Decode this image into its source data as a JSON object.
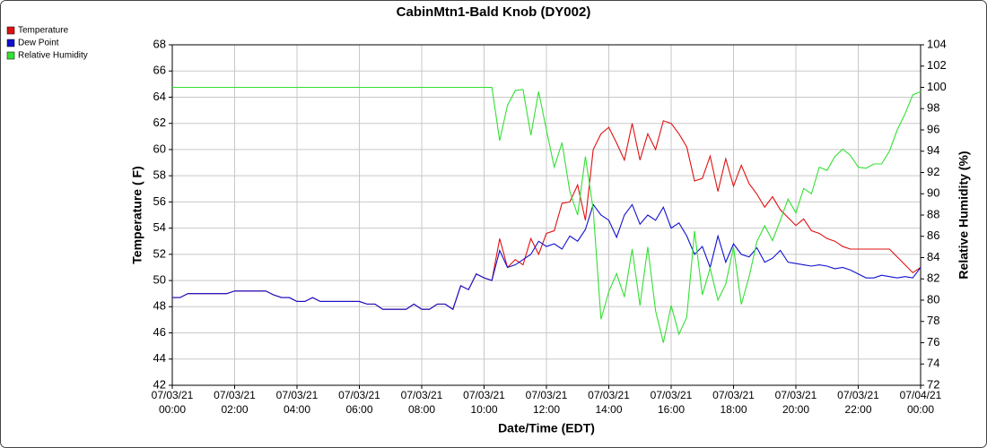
{
  "chart_data": {
    "type": "line",
    "title": "CabinMtn1-Bald Knob (DY002)",
    "x_label": "Date/Time (EDT)",
    "y_label": "Temperature ( F)",
    "y2_label": "Relative Humidity (%)",
    "xlim": [
      0,
      24
    ],
    "xticks": [
      {
        "value": 0,
        "label": "07/03/21 00:00"
      },
      {
        "value": 2,
        "label": "07/03/21 02:00"
      },
      {
        "value": 4,
        "label": "07/03/21 04:00"
      },
      {
        "value": 6,
        "label": "07/03/21 06:00"
      },
      {
        "value": 8,
        "label": "07/03/21 08:00"
      },
      {
        "value": 10,
        "label": "07/03/21 10:00"
      },
      {
        "value": 12,
        "label": "07/03/21 12:00"
      },
      {
        "value": 14,
        "label": "07/03/21 14:00"
      },
      {
        "value": 16,
        "label": "07/03/21 16:00"
      },
      {
        "value": 18,
        "label": "07/03/21 18:00"
      },
      {
        "value": 20,
        "label": "07/03/21 20:00"
      },
      {
        "value": 22,
        "label": "07/03/21 22:00"
      },
      {
        "value": 24,
        "label": "07/04/21 00:00"
      }
    ],
    "ylim": [
      42,
      68
    ],
    "yticks": [
      42,
      44,
      46,
      48,
      50,
      52,
      54,
      56,
      58,
      60,
      62,
      64,
      66,
      68
    ],
    "y2lim": [
      72,
      104
    ],
    "y2ticks": [
      72,
      74,
      76,
      78,
      80,
      82,
      84,
      86,
      88,
      90,
      92,
      94,
      96,
      98,
      100,
      102,
      104
    ],
    "grid": true,
    "legend": "top-left",
    "x": [
      0,
      0.25,
      0.5,
      0.75,
      1,
      1.25,
      1.5,
      1.75,
      2,
      2.25,
      2.5,
      2.75,
      3,
      3.25,
      3.5,
      3.75,
      4,
      4.25,
      4.5,
      4.75,
      5,
      5.25,
      5.5,
      5.75,
      6,
      6.25,
      6.5,
      6.75,
      7,
      7.25,
      7.5,
      7.75,
      8,
      8.25,
      8.5,
      8.75,
      9,
      9.25,
      9.5,
      9.75,
      10,
      10.25,
      10.5,
      10.75,
      11,
      11.25,
      11.5,
      11.75,
      12,
      12.25,
      12.5,
      12.75,
      13,
      13.25,
      13.5,
      13.75,
      14,
      14.25,
      14.5,
      14.75,
      15,
      15.25,
      15.5,
      15.75,
      16,
      16.25,
      16.5,
      16.75,
      17,
      17.25,
      17.5,
      17.75,
      18,
      18.25,
      18.5,
      18.75,
      19,
      19.25,
      19.5,
      19.75,
      20,
      20.25,
      20.5,
      20.75,
      21,
      21.25,
      21.5,
      21.75,
      22,
      22.25,
      22.5,
      22.75,
      23,
      23.25,
      23.5,
      23.75,
      24
    ],
    "series": [
      {
        "name": "Temperature",
        "color": "#e01010",
        "values": [
          48.7,
          48.7,
          49.0,
          49.0,
          49.0,
          49.0,
          49.0,
          49.0,
          49.2,
          49.2,
          49.2,
          49.2,
          49.2,
          48.9,
          48.7,
          48.7,
          48.4,
          48.4,
          48.7,
          48.4,
          48.4,
          48.4,
          48.4,
          48.4,
          48.4,
          48.2,
          48.2,
          47.8,
          47.8,
          47.8,
          47.8,
          48.2,
          47.8,
          47.8,
          48.2,
          48.2,
          47.8,
          49.6,
          49.3,
          50.5,
          50.2,
          50.0,
          53.2,
          51.0,
          51.6,
          51.2,
          53.2,
          52.0,
          53.6,
          53.8,
          55.9,
          56.0,
          57.3,
          54.6,
          60.0,
          61.2,
          61.7,
          60.5,
          59.2,
          62.0,
          59.2,
          61.2,
          60.0,
          62.2,
          62.0,
          61.2,
          60.2,
          57.6,
          57.8,
          59.5,
          56.8,
          59.3,
          57.2,
          58.8,
          57.4,
          56.6,
          55.6,
          56.4,
          55.4,
          54.8,
          54.2,
          54.7,
          53.8,
          53.6,
          53.2,
          53.0,
          52.6,
          52.4,
          52.4,
          52.4,
          52.4,
          52.4,
          52.4,
          51.8,
          51.2,
          50.6,
          51.0
        ]
      },
      {
        "name": "Dew Point",
        "color": "#1010d0",
        "values": [
          48.7,
          48.7,
          49.0,
          49.0,
          49.0,
          49.0,
          49.0,
          49.0,
          49.2,
          49.2,
          49.2,
          49.2,
          49.2,
          48.9,
          48.7,
          48.7,
          48.4,
          48.4,
          48.7,
          48.4,
          48.4,
          48.4,
          48.4,
          48.4,
          48.4,
          48.2,
          48.2,
          47.8,
          47.8,
          47.8,
          47.8,
          48.2,
          47.8,
          47.8,
          48.2,
          48.2,
          47.8,
          49.6,
          49.3,
          50.5,
          50.2,
          50.0,
          52.3,
          51.0,
          51.2,
          51.6,
          52.0,
          53.0,
          52.6,
          52.8,
          52.4,
          53.4,
          53.0,
          53.9,
          55.8,
          55.0,
          54.6,
          53.3,
          55.0,
          55.8,
          54.3,
          55.0,
          54.6,
          55.6,
          54.0,
          54.4,
          53.4,
          52.0,
          52.6,
          51.0,
          53.4,
          51.4,
          52.8,
          52.0,
          51.8,
          52.5,
          51.4,
          51.7,
          52.3,
          51.4,
          51.3,
          51.2,
          51.1,
          51.2,
          51.1,
          50.9,
          51.0,
          50.8,
          50.5,
          50.2,
          50.2,
          50.4,
          50.3,
          50.2,
          50.3,
          50.2,
          51.0
        ]
      },
      {
        "name": "Relative Humidity",
        "color": "#33e033",
        "axis": "y2",
        "values": [
          100,
          100,
          100,
          100,
          100,
          100,
          100,
          100,
          100,
          100,
          100,
          100,
          100,
          100,
          100,
          100,
          100,
          100,
          100,
          100,
          100,
          100,
          100,
          100,
          100,
          100,
          100,
          100,
          100,
          100,
          100,
          100,
          100,
          100,
          100,
          100,
          100,
          100,
          100,
          100,
          100,
          100,
          95.0,
          98.3,
          99.7,
          99.8,
          95.5,
          99.6,
          96.0,
          92.5,
          94.8,
          90.2,
          88.0,
          93.5,
          88.5,
          78.2,
          80.8,
          82.5,
          80.3,
          84.8,
          79.5,
          85.0,
          79.0,
          76.0,
          79.5,
          76.8,
          78.4,
          86.5,
          80.5,
          83.0,
          80.0,
          81.5,
          85.0,
          79.6,
          82.2,
          85.5,
          87.0,
          85.6,
          87.5,
          89.5,
          88.2,
          90.5,
          90.0,
          92.5,
          92.2,
          93.5,
          94.2,
          93.6,
          92.5,
          92.4,
          92.8,
          92.8,
          94.0,
          96.0,
          97.5,
          99.3,
          99.6
        ]
      }
    ]
  }
}
